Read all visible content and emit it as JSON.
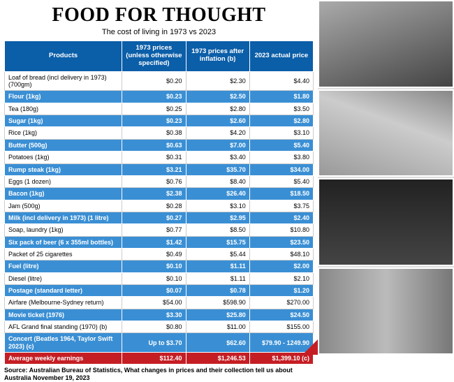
{
  "title": "FOOD FOR THOUGHT",
  "subtitle": "The cost of living in 1973 vs 2023",
  "columns": {
    "products": "Products",
    "c1": "1973 prices (unless otherwise specified)",
    "c2": "1973 prices after inflation (b)",
    "c3": "2023 actual price"
  },
  "rows": [
    {
      "p": "Loaf of bread (incl delivery in 1973) (700gm)",
      "a": "$0.20",
      "b": "$2.30",
      "c": "$4.40",
      "t": "white"
    },
    {
      "p": "Flour (1kg)",
      "a": "$0.23",
      "b": "$2.50",
      "c": "$1.80",
      "t": "blue"
    },
    {
      "p": "Tea (180g)",
      "a": "$0.25",
      "b": "$2.80",
      "c": "$3.50",
      "t": "white"
    },
    {
      "p": "Sugar (1kg)",
      "a": "$0.23",
      "b": "$2.60",
      "c": "$2.80",
      "t": "blue"
    },
    {
      "p": "Rice (1kg)",
      "a": "$0.38",
      "b": "$4.20",
      "c": "$3.10",
      "t": "white"
    },
    {
      "p": "Butter (500g)",
      "a": "$0.63",
      "b": "$7.00",
      "c": "$5.40",
      "t": "blue"
    },
    {
      "p": "Potatoes (1kg)",
      "a": "$0.31",
      "b": "$3.40",
      "c": "$3.80",
      "t": "white"
    },
    {
      "p": "Rump steak (1kg)",
      "a": "$3.21",
      "b": "$35.70",
      "c": "$34.00",
      "t": "blue"
    },
    {
      "p": "Eggs (1 dozen)",
      "a": "$0.76",
      "b": "$8.40",
      "c": "$5.40",
      "t": "white"
    },
    {
      "p": "Bacon (1kg)",
      "a": "$2.38",
      "b": "$26.40",
      "c": "$18.50",
      "t": "blue"
    },
    {
      "p": "Jam (500g)",
      "a": "$0.28",
      "b": "$3.10",
      "c": "$3.75",
      "t": "white"
    },
    {
      "p": "Milk (incl delivery in 1973) (1 litre)",
      "a": "$0.27",
      "b": "$2.95",
      "c": "$2.40",
      "t": "blue"
    },
    {
      "p": "Soap, laundry (1kg)",
      "a": "$0.77",
      "b": "$8.50",
      "c": "$10.80",
      "t": "white"
    },
    {
      "p": "Six pack of beer (6 x 355ml bottles)",
      "a": "$1.42",
      "b": "$15.75",
      "c": "$23.50",
      "t": "blue"
    },
    {
      "p": "Packet of 25 cigarettes",
      "a": "$0.49",
      "b": "$5.44",
      "c": "$48.10",
      "t": "white"
    },
    {
      "p": "Fuel (litre)",
      "a": "$0.10",
      "b": "$1.11",
      "c": "$2.00",
      "t": "blue"
    },
    {
      "p": "Diesel (litre)",
      "a": "$0.10",
      "b": "$1.11",
      "c": "$2.10",
      "t": "white"
    },
    {
      "p": "Postage (standard letter)",
      "a": "$0.07",
      "b": "$0.78",
      "c": "$1.20",
      "t": "blue"
    },
    {
      "p": "Airfare (Melbourne-Sydney return)",
      "a": "$54.00",
      "b": "$598.90",
      "c": "$270.00",
      "t": "white"
    },
    {
      "p": "Movie ticket (1976)",
      "a": "$3.30",
      "b": "$25.80",
      "c": "$24.50",
      "t": "blue"
    },
    {
      "p": "AFL Grand final standing (1970) (b)",
      "a": "$0.80",
      "b": "$11.00",
      "c": "$155.00",
      "t": "white"
    },
    {
      "p": "Concert (Beatles 1964, Taylor Swift 2023) (c)",
      "a": "Up to $3.70",
      "b": "$62.60",
      "c": "$79.90 - 1249.90",
      "t": "blue"
    },
    {
      "p": "Average weekly earnings",
      "a": "$112.40",
      "b": "$1,246.53",
      "c": "$1,399.10 (c)",
      "t": "red"
    }
  ],
  "source": "Source: Australian Bureau of Statistics, What changes in prices and their collection tell us about Australia November 19, 2023"
}
